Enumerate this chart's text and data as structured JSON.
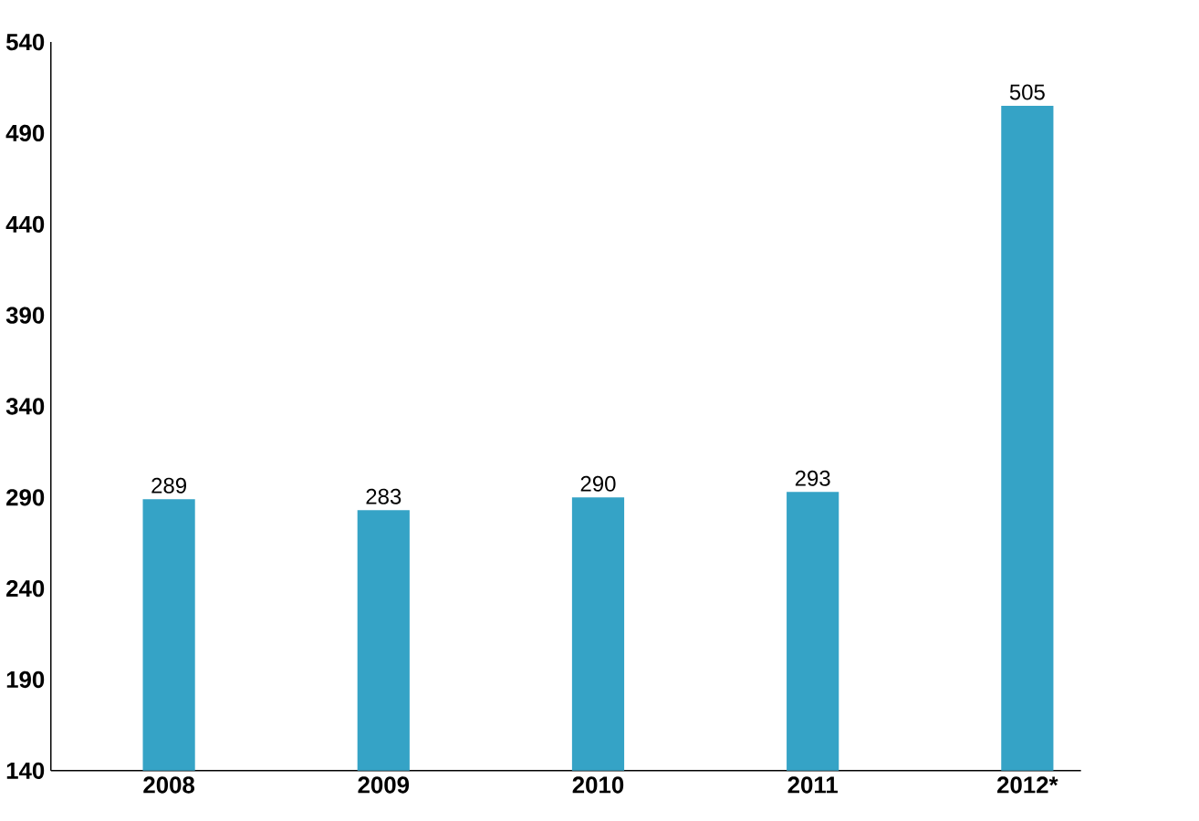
{
  "chart_data": {
    "type": "bar",
    "categories": [
      "2008",
      "2009",
      "2010",
      "2011",
      "2012*"
    ],
    "values": [
      289,
      283,
      290,
      293,
      505
    ],
    "color": "#35a3c6",
    "ylim": [
      140,
      540
    ],
    "yticks": [
      140,
      190,
      240,
      290,
      340,
      390,
      440,
      490,
      540
    ],
    "data_labels": true
  }
}
